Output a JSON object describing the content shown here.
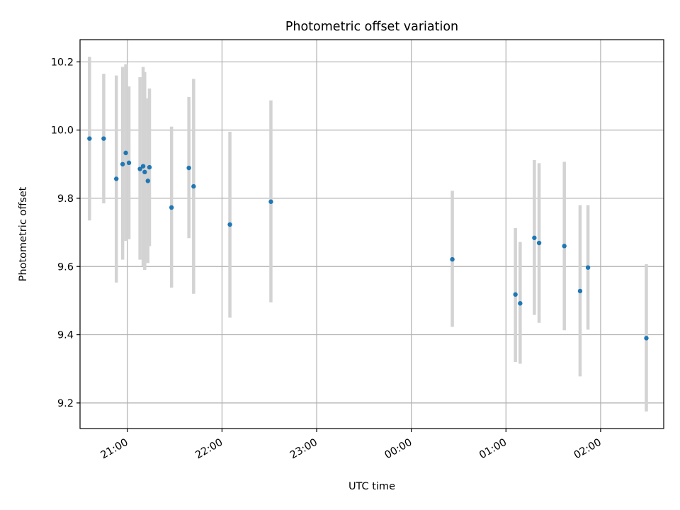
{
  "chart_data": {
    "type": "scatter",
    "title": "Photometric offset variation",
    "xlabel": "UTC time",
    "ylabel": "Photometric offset",
    "x_axis": {
      "kind": "time",
      "range": [
        "20:30",
        "02:40"
      ],
      "ticks": [
        "21:00",
        "22:00",
        "23:00",
        "00:00",
        "01:00",
        "02:00"
      ]
    },
    "ylim": [
      9.125,
      10.265
    ],
    "yticks": [
      9.2,
      9.4,
      9.6,
      9.8,
      10.0,
      10.2
    ],
    "ytick_labels": [
      "9.2",
      "9.4",
      "9.6",
      "9.8",
      "10.0",
      "10.2"
    ],
    "grid": true,
    "colors": {
      "point": "#1f77b4",
      "errorbar": "#d3d3d3",
      "grid": "#b0b0b0"
    },
    "points": [
      {
        "t": "20:36",
        "y": 9.975,
        "lo": 9.735,
        "hi": 10.215
      },
      {
        "t": "20:45",
        "y": 9.975,
        "lo": 9.785,
        "hi": 10.165
      },
      {
        "t": "20:53",
        "y": 9.857,
        "lo": 9.553,
        "hi": 10.16
      },
      {
        "t": "20:57",
        "y": 9.9,
        "lo": 9.62,
        "hi": 10.185
      },
      {
        "t": "20:59",
        "y": 9.933,
        "lo": 9.675,
        "hi": 10.193
      },
      {
        "t": "21:01",
        "y": 9.904,
        "lo": 9.68,
        "hi": 10.128
      },
      {
        "t": "21:08",
        "y": 9.886,
        "lo": 9.62,
        "hi": 10.155
      },
      {
        "t": "21:10",
        "y": 9.894,
        "lo": 9.6,
        "hi": 10.185
      },
      {
        "t": "21:11",
        "y": 9.877,
        "lo": 9.59,
        "hi": 10.17
      },
      {
        "t": "21:13",
        "y": 9.851,
        "lo": 9.61,
        "hi": 10.093
      },
      {
        "t": "21:14",
        "y": 9.891,
        "lo": 9.66,
        "hi": 10.122
      },
      {
        "t": "21:28",
        "y": 9.773,
        "lo": 9.538,
        "hi": 10.01
      },
      {
        "t": "21:39",
        "y": 9.889,
        "lo": 9.683,
        "hi": 10.097
      },
      {
        "t": "21:42",
        "y": 9.835,
        "lo": 9.52,
        "hi": 10.15
      },
      {
        "t": "22:05",
        "y": 9.723,
        "lo": 9.45,
        "hi": 9.995
      },
      {
        "t": "22:31",
        "y": 9.79,
        "lo": 9.495,
        "hi": 10.087
      },
      {
        "t": "00:26",
        "y": 9.621,
        "lo": 9.423,
        "hi": 9.822
      },
      {
        "t": "01:06",
        "y": 9.518,
        "lo": 9.32,
        "hi": 9.713
      },
      {
        "t": "01:09",
        "y": 9.492,
        "lo": 9.315,
        "hi": 9.672
      },
      {
        "t": "01:18",
        "y": 9.684,
        "lo": 9.458,
        "hi": 9.912
      },
      {
        "t": "01:21",
        "y": 9.669,
        "lo": 9.435,
        "hi": 9.903
      },
      {
        "t": "01:37",
        "y": 9.66,
        "lo": 9.413,
        "hi": 9.907
      },
      {
        "t": "01:47",
        "y": 9.528,
        "lo": 9.278,
        "hi": 9.78
      },
      {
        "t": "01:52",
        "y": 9.597,
        "lo": 9.415,
        "hi": 9.78
      },
      {
        "t": "02:29",
        "y": 9.39,
        "lo": 9.175,
        "hi": 9.607
      }
    ]
  }
}
